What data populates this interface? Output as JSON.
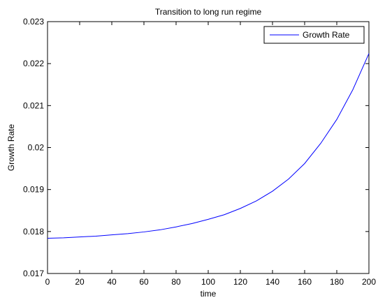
{
  "chart_data": {
    "type": "line",
    "title": "Transition to long run regime",
    "xlabel": "time",
    "ylabel": "Growth Rate",
    "xlim": [
      0,
      200
    ],
    "ylim": [
      0.017,
      0.023
    ],
    "xticks": [
      0,
      20,
      40,
      60,
      80,
      100,
      120,
      140,
      160,
      180,
      200
    ],
    "xtick_labels": [
      "0",
      "20",
      "40",
      "60",
      "80",
      "100",
      "120",
      "140",
      "160",
      "180",
      "200"
    ],
    "yticks": [
      0.017,
      0.018,
      0.019,
      0.02,
      0.021,
      0.022,
      0.023
    ],
    "ytick_labels": [
      "0.017",
      "0.018",
      "0.019",
      "0.02",
      "0.021",
      "0.022",
      "0.023"
    ],
    "grid": false,
    "legend_position": "top-right",
    "series": [
      {
        "name": "Growth Rate",
        "color": "#0000ff",
        "x": [
          0,
          10,
          20,
          30,
          40,
          50,
          60,
          70,
          80,
          90,
          100,
          110,
          120,
          130,
          140,
          150,
          160,
          170,
          180,
          190,
          200
        ],
        "y": [
          0.01784,
          0.01785,
          0.01787,
          0.01789,
          0.01792,
          0.01795,
          0.01799,
          0.01804,
          0.01811,
          0.01819,
          0.01829,
          0.0184,
          0.01855,
          0.01873,
          0.01896,
          0.01925,
          0.01962,
          0.0201,
          0.02067,
          0.02138,
          0.02224
        ]
      }
    ]
  }
}
